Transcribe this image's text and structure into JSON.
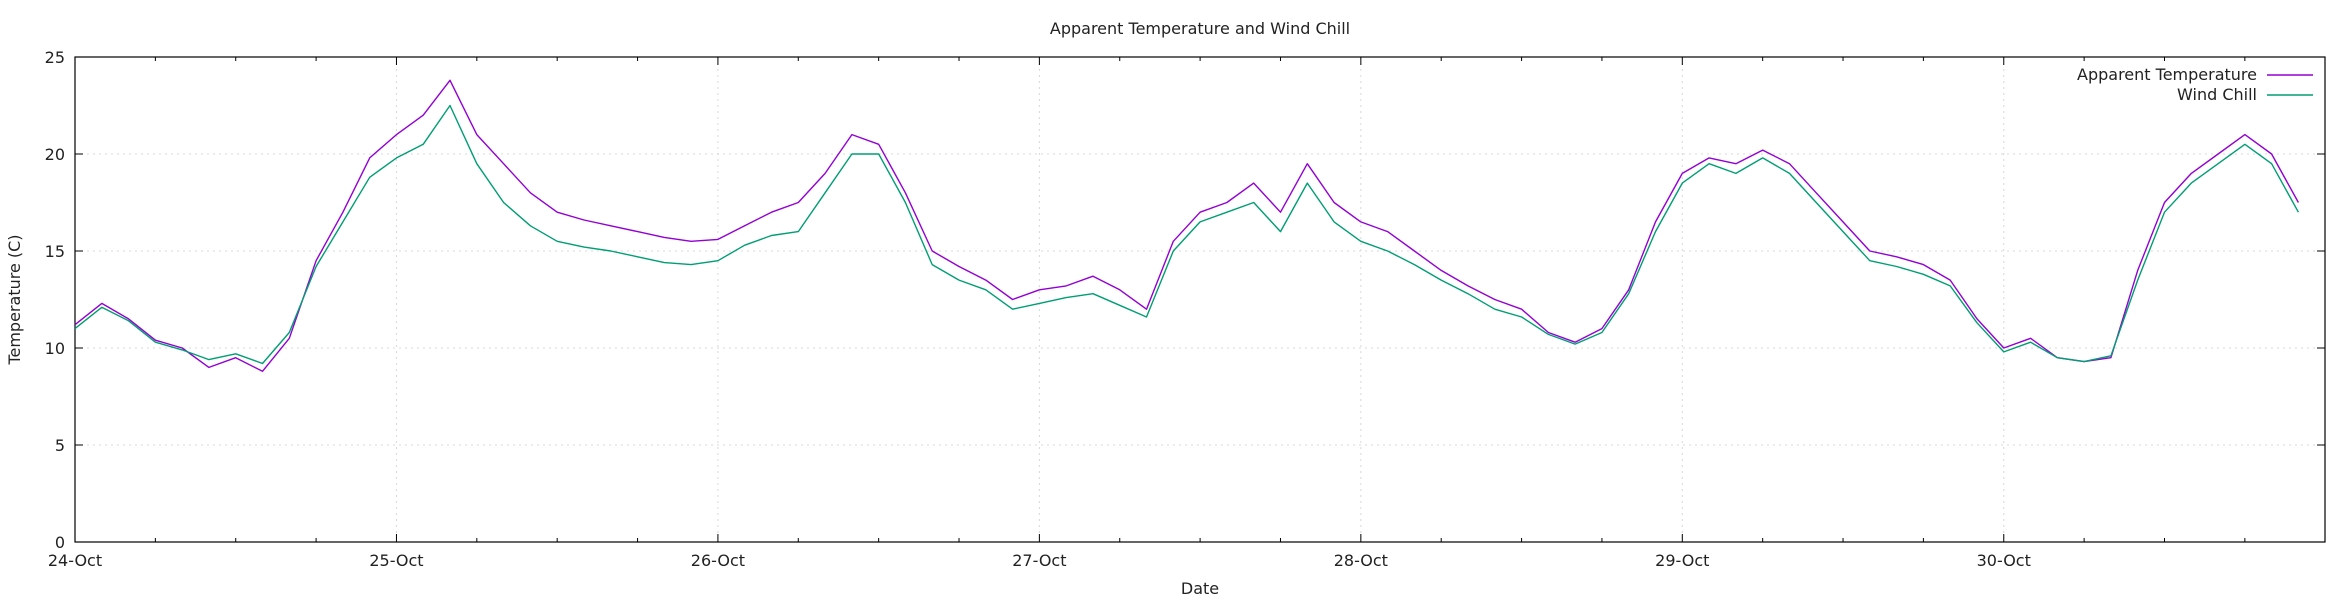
{
  "chart_data": {
    "type": "line",
    "title": "Apparent Temperature and Wind Chill",
    "xlabel": "Date",
    "ylabel": "Temperature (C)",
    "ylim": [
      0,
      25
    ],
    "yticks": [
      0,
      5,
      10,
      15,
      20,
      25
    ],
    "xlim": [
      "2023-10-24T00:00",
      "2023-10-30T23:59"
    ],
    "xticks": [
      {
        "date": "2023-10-24T00:00",
        "label": "24-Oct"
      },
      {
        "date": "2023-10-25T00:00",
        "label": "25-Oct"
      },
      {
        "date": "2023-10-26T00:00",
        "label": "26-Oct"
      },
      {
        "date": "2023-10-27T00:00",
        "label": "27-Oct"
      },
      {
        "date": "2023-10-28T00:00",
        "label": "28-Oct"
      },
      {
        "date": "2023-10-29T00:00",
        "label": "29-Oct"
      },
      {
        "date": "2023-10-30T00:00",
        "label": "30-Oct"
      }
    ],
    "grid": true,
    "legend": "top-right",
    "series": [
      {
        "name": "Apparent Temperature",
        "color": "#9400d3",
        "points": [
          [
            "2023-10-24T00:00",
            11.2
          ],
          [
            "2023-10-24T02:00",
            12.3
          ],
          [
            "2023-10-24T04:00",
            11.5
          ],
          [
            "2023-10-24T06:00",
            10.4
          ],
          [
            "2023-10-24T08:00",
            10.0
          ],
          [
            "2023-10-24T10:00",
            9.0
          ],
          [
            "2023-10-24T12:00",
            9.5
          ],
          [
            "2023-10-24T14:00",
            8.8
          ],
          [
            "2023-10-24T16:00",
            10.5
          ],
          [
            "2023-10-24T18:00",
            14.5
          ],
          [
            "2023-10-24T20:00",
            17.0
          ],
          [
            "2023-10-24T22:00",
            19.8
          ],
          [
            "2023-10-25T00:00",
            21.0
          ],
          [
            "2023-10-25T02:00",
            22.0
          ],
          [
            "2023-10-25T04:00",
            23.8
          ],
          [
            "2023-10-25T06:00",
            21.0
          ],
          [
            "2023-10-25T08:00",
            19.5
          ],
          [
            "2023-10-25T10:00",
            18.0
          ],
          [
            "2023-10-25T12:00",
            17.0
          ],
          [
            "2023-10-25T14:00",
            16.6
          ],
          [
            "2023-10-25T16:00",
            16.3
          ],
          [
            "2023-10-25T18:00",
            16.0
          ],
          [
            "2023-10-25T20:00",
            15.7
          ],
          [
            "2023-10-25T22:00",
            15.5
          ],
          [
            "2023-10-26T00:00",
            15.6
          ],
          [
            "2023-10-26T02:00",
            16.3
          ],
          [
            "2023-10-26T04:00",
            17.0
          ],
          [
            "2023-10-26T06:00",
            17.5
          ],
          [
            "2023-10-26T08:00",
            19.0
          ],
          [
            "2023-10-26T10:00",
            21.0
          ],
          [
            "2023-10-26T12:00",
            20.5
          ],
          [
            "2023-10-26T14:00",
            18.0
          ],
          [
            "2023-10-26T16:00",
            15.0
          ],
          [
            "2023-10-26T18:00",
            14.2
          ],
          [
            "2023-10-26T20:00",
            13.5
          ],
          [
            "2023-10-26T22:00",
            12.5
          ],
          [
            "2023-10-27T00:00",
            13.0
          ],
          [
            "2023-10-27T02:00",
            13.2
          ],
          [
            "2023-10-27T04:00",
            13.7
          ],
          [
            "2023-10-27T06:00",
            13.0
          ],
          [
            "2023-10-27T08:00",
            12.0
          ],
          [
            "2023-10-27T10:00",
            15.5
          ],
          [
            "2023-10-27T12:00",
            17.0
          ],
          [
            "2023-10-27T14:00",
            17.5
          ],
          [
            "2023-10-27T16:00",
            18.5
          ],
          [
            "2023-10-27T18:00",
            17.0
          ],
          [
            "2023-10-27T20:00",
            19.5
          ],
          [
            "2023-10-27T22:00",
            17.5
          ],
          [
            "2023-10-28T00:00",
            16.5
          ],
          [
            "2023-10-28T02:00",
            16.0
          ],
          [
            "2023-10-28T04:00",
            15.0
          ],
          [
            "2023-10-28T06:00",
            14.0
          ],
          [
            "2023-10-28T08:00",
            13.2
          ],
          [
            "2023-10-28T10:00",
            12.5
          ],
          [
            "2023-10-28T12:00",
            12.0
          ],
          [
            "2023-10-28T14:00",
            10.8
          ],
          [
            "2023-10-28T16:00",
            10.3
          ],
          [
            "2023-10-28T18:00",
            11.0
          ],
          [
            "2023-10-28T20:00",
            13.0
          ],
          [
            "2023-10-28T22:00",
            16.5
          ],
          [
            "2023-10-29T00:00",
            19.0
          ],
          [
            "2023-10-29T02:00",
            19.8
          ],
          [
            "2023-10-29T04:00",
            19.5
          ],
          [
            "2023-10-29T06:00",
            20.2
          ],
          [
            "2023-10-29T08:00",
            19.5
          ],
          [
            "2023-10-29T10:00",
            18.0
          ],
          [
            "2023-10-29T12:00",
            16.5
          ],
          [
            "2023-10-29T14:00",
            15.0
          ],
          [
            "2023-10-29T16:00",
            14.7
          ],
          [
            "2023-10-29T18:00",
            14.3
          ],
          [
            "2023-10-29T20:00",
            13.5
          ],
          [
            "2023-10-29T22:00",
            11.5
          ],
          [
            "2023-10-30T00:00",
            10.0
          ],
          [
            "2023-10-30T02:00",
            10.5
          ],
          [
            "2023-10-30T04:00",
            9.5
          ],
          [
            "2023-10-30T06:00",
            9.3
          ],
          [
            "2023-10-30T08:00",
            9.5
          ],
          [
            "2023-10-30T10:00",
            14.0
          ],
          [
            "2023-10-30T12:00",
            17.5
          ],
          [
            "2023-10-30T14:00",
            19.0
          ],
          [
            "2023-10-30T16:00",
            20.0
          ],
          [
            "2023-10-30T18:00",
            21.0
          ],
          [
            "2023-10-30T20:00",
            20.0
          ],
          [
            "2023-10-30T22:00",
            17.5
          ]
        ]
      },
      {
        "name": "Wind Chill",
        "color": "#009e73",
        "points": [
          [
            "2023-10-24T00:00",
            11.0
          ],
          [
            "2023-10-24T02:00",
            12.1
          ],
          [
            "2023-10-24T04:00",
            11.4
          ],
          [
            "2023-10-24T06:00",
            10.3
          ],
          [
            "2023-10-24T08:00",
            9.9
          ],
          [
            "2023-10-24T10:00",
            9.4
          ],
          [
            "2023-10-24T12:00",
            9.7
          ],
          [
            "2023-10-24T14:00",
            9.2
          ],
          [
            "2023-10-24T16:00",
            10.8
          ],
          [
            "2023-10-24T18:00",
            14.2
          ],
          [
            "2023-10-24T20:00",
            16.5
          ],
          [
            "2023-10-24T22:00",
            18.8
          ],
          [
            "2023-10-25T00:00",
            19.8
          ],
          [
            "2023-10-25T02:00",
            20.5
          ],
          [
            "2023-10-25T04:00",
            22.5
          ],
          [
            "2023-10-25T06:00",
            19.5
          ],
          [
            "2023-10-25T08:00",
            17.5
          ],
          [
            "2023-10-25T10:00",
            16.3
          ],
          [
            "2023-10-25T12:00",
            15.5
          ],
          [
            "2023-10-25T14:00",
            15.2
          ],
          [
            "2023-10-25T16:00",
            15.0
          ],
          [
            "2023-10-25T18:00",
            14.7
          ],
          [
            "2023-10-25T20:00",
            14.4
          ],
          [
            "2023-10-25T22:00",
            14.3
          ],
          [
            "2023-10-26T00:00",
            14.5
          ],
          [
            "2023-10-26T02:00",
            15.3
          ],
          [
            "2023-10-26T04:00",
            15.8
          ],
          [
            "2023-10-26T06:00",
            16.0
          ],
          [
            "2023-10-26T08:00",
            18.0
          ],
          [
            "2023-10-26T10:00",
            20.0
          ],
          [
            "2023-10-26T12:00",
            20.0
          ],
          [
            "2023-10-26T14:00",
            17.5
          ],
          [
            "2023-10-26T16:00",
            14.3
          ],
          [
            "2023-10-26T18:00",
            13.5
          ],
          [
            "2023-10-26T20:00",
            13.0
          ],
          [
            "2023-10-26T22:00",
            12.0
          ],
          [
            "2023-10-27T00:00",
            12.3
          ],
          [
            "2023-10-27T02:00",
            12.6
          ],
          [
            "2023-10-27T04:00",
            12.8
          ],
          [
            "2023-10-27T06:00",
            12.2
          ],
          [
            "2023-10-27T08:00",
            11.6
          ],
          [
            "2023-10-27T10:00",
            15.0
          ],
          [
            "2023-10-27T12:00",
            16.5
          ],
          [
            "2023-10-27T14:00",
            17.0
          ],
          [
            "2023-10-27T16:00",
            17.5
          ],
          [
            "2023-10-27T18:00",
            16.0
          ],
          [
            "2023-10-27T20:00",
            18.5
          ],
          [
            "2023-10-27T22:00",
            16.5
          ],
          [
            "2023-10-28T00:00",
            15.5
          ],
          [
            "2023-10-28T02:00",
            15.0
          ],
          [
            "2023-10-28T04:00",
            14.3
          ],
          [
            "2023-10-28T06:00",
            13.5
          ],
          [
            "2023-10-28T08:00",
            12.8
          ],
          [
            "2023-10-28T10:00",
            12.0
          ],
          [
            "2023-10-28T12:00",
            11.6
          ],
          [
            "2023-10-28T14:00",
            10.7
          ],
          [
            "2023-10-28T16:00",
            10.2
          ],
          [
            "2023-10-28T18:00",
            10.8
          ],
          [
            "2023-10-28T20:00",
            12.8
          ],
          [
            "2023-10-28T22:00",
            16.0
          ],
          [
            "2023-10-29T00:00",
            18.5
          ],
          [
            "2023-10-29T02:00",
            19.5
          ],
          [
            "2023-10-29T04:00",
            19.0
          ],
          [
            "2023-10-29T06:00",
            19.8
          ],
          [
            "2023-10-29T08:00",
            19.0
          ],
          [
            "2023-10-29T10:00",
            17.5
          ],
          [
            "2023-10-29T12:00",
            16.0
          ],
          [
            "2023-10-29T14:00",
            14.5
          ],
          [
            "2023-10-29T16:00",
            14.2
          ],
          [
            "2023-10-29T18:00",
            13.8
          ],
          [
            "2023-10-29T20:00",
            13.2
          ],
          [
            "2023-10-29T22:00",
            11.3
          ],
          [
            "2023-10-30T00:00",
            9.8
          ],
          [
            "2023-10-30T02:00",
            10.3
          ],
          [
            "2023-10-30T04:00",
            9.5
          ],
          [
            "2023-10-30T06:00",
            9.3
          ],
          [
            "2023-10-30T08:00",
            9.6
          ],
          [
            "2023-10-30T10:00",
            13.5
          ],
          [
            "2023-10-30T12:00",
            17.0
          ],
          [
            "2023-10-30T14:00",
            18.5
          ],
          [
            "2023-10-30T16:00",
            19.5
          ],
          [
            "2023-10-30T18:00",
            20.5
          ],
          [
            "2023-10-30T20:00",
            19.5
          ],
          [
            "2023-10-30T22:00",
            17.0
          ]
        ]
      }
    ]
  }
}
